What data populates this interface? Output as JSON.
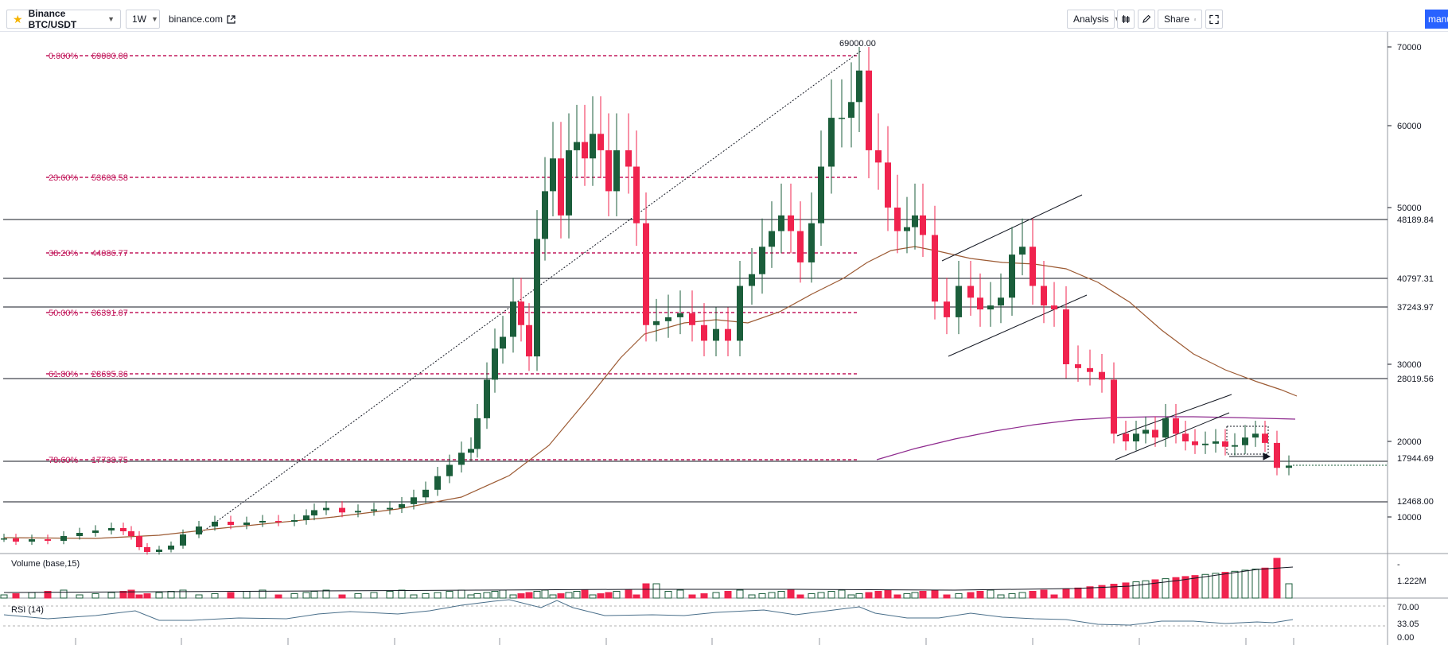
{
  "toolbar": {
    "symbol": "Binance BTC/USDT",
    "interval": "1W",
    "source": "binance.com",
    "analysis": "Analysis",
    "share": "Share",
    "user": "manu"
  },
  "colors": {
    "up": "#1b5e3b",
    "down": "#f0234e",
    "fib": "#c2185b",
    "ma_brown": "#9c5a33",
    "ma_purple": "#8e2a8e",
    "axis_text": "#131722"
  },
  "icons": [
    "star-icon",
    "chevron-down-icon",
    "external-link-icon",
    "candles-icon",
    "pencil-icon",
    "fullscreen-icon"
  ],
  "chart": {
    "peak_label": "69000.00",
    "fib_levels": [
      {
        "label": "0.000%",
        "value": "69000.00",
        "price": 69000
      },
      {
        "label": "23.60%",
        "value": "53608.58",
        "price": 53608.58
      },
      {
        "label": "38.20%",
        "value": "44086.77",
        "price": 44086.77
      },
      {
        "label": "50.00%",
        "value": "36391.07",
        "price": 36391.07
      },
      {
        "label": "61.80%",
        "value": "28695.36",
        "price": 28695.36
      },
      {
        "label": "78.60%",
        "value": "17738.75",
        "price": 17738.75
      }
    ],
    "price_ticks": [
      "70000",
      "60000",
      "50000",
      "30000",
      "20000",
      "10000"
    ],
    "level_labels": [
      "48189.84",
      "40797.31",
      "37243.97",
      "28019.56",
      "17944.69",
      "12468.00"
    ],
    "volume": {
      "title": "Volume (base,15)",
      "last_value": "1.222M",
      "tick": "-"
    },
    "rsi": {
      "title": "RSI (14)",
      "ticks": [
        "70.00",
        "33.05",
        "0.00"
      ]
    }
  }
}
